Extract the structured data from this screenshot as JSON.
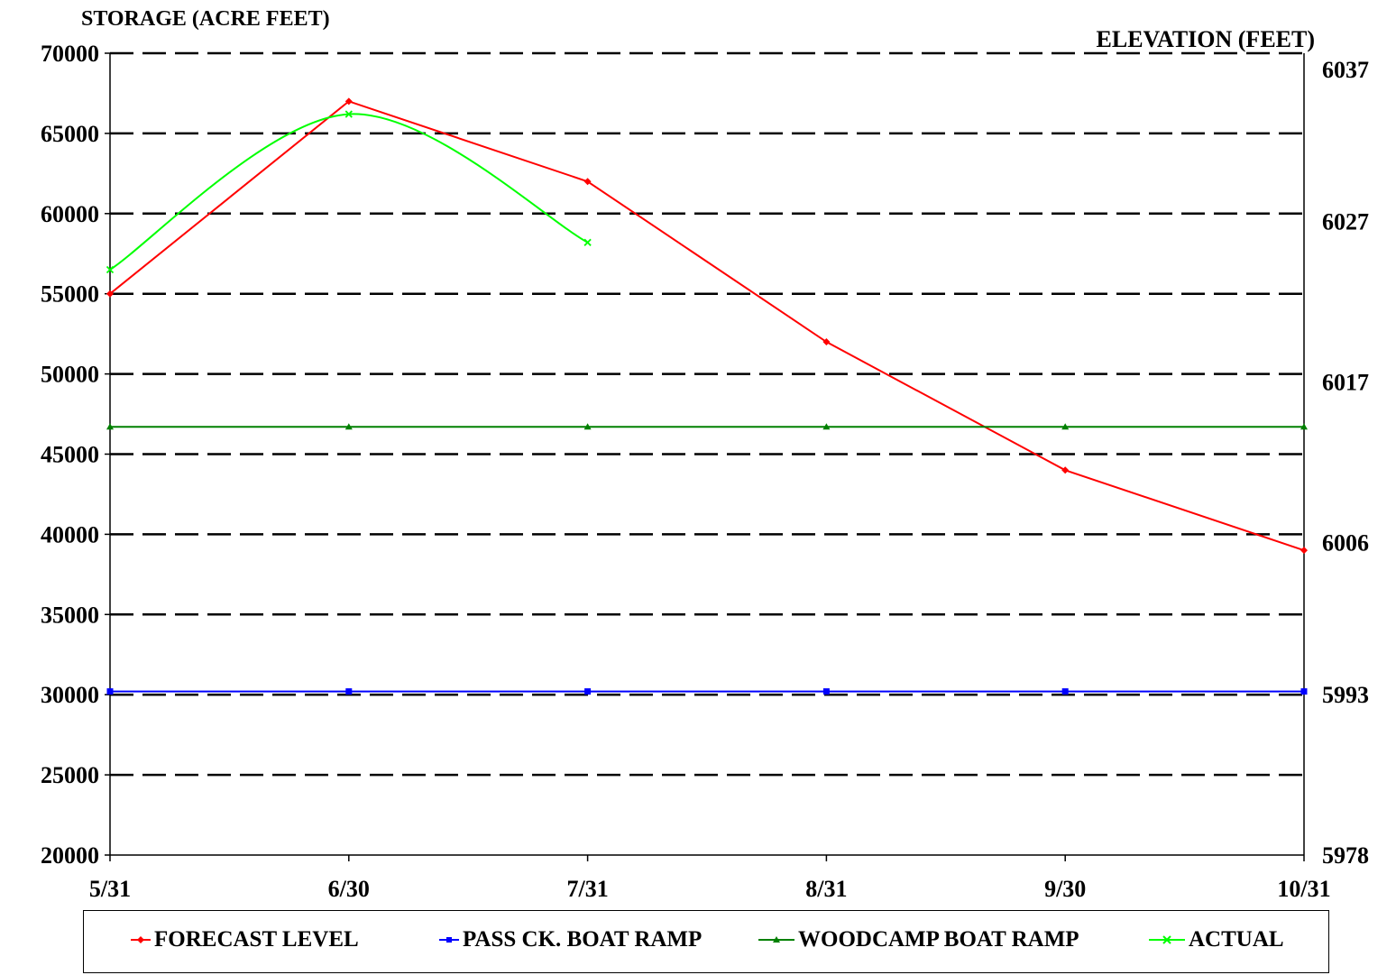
{
  "chart_data": {
    "type": "line",
    "left_axis_title": "STORAGE (ACRE FEET)",
    "right_axis_title": "ELEVATION (FEET)",
    "categories": [
      "5/31",
      "6/30",
      "7/31",
      "8/31",
      "9/30",
      "10/31"
    ],
    "ylim": [
      20000,
      70000
    ],
    "yticks": [
      "20000",
      "25000",
      "30000",
      "35000",
      "40000",
      "45000",
      "50000",
      "55000",
      "60000",
      "65000",
      "70000"
    ],
    "ytick_values": [
      20000,
      25000,
      30000,
      35000,
      40000,
      45000,
      50000,
      55000,
      60000,
      65000,
      70000
    ],
    "right_ticks": [
      {
        "label": "6037",
        "storage": 69000
      },
      {
        "label": "6027",
        "storage": 59500
      },
      {
        "label": "6017",
        "storage": 49500
      },
      {
        "label": "6006",
        "storage": 39500
      },
      {
        "label": "5993",
        "storage": 30000
      },
      {
        "label": "5978",
        "storage": 20000
      }
    ],
    "grid": "horizontal-dashed",
    "legend_position": "bottom",
    "series": [
      {
        "name": "FORECAST LEVEL",
        "color": "#ff0000",
        "marker": "diamond",
        "smooth": false,
        "values": [
          55000,
          67000,
          62000,
          52000,
          44000,
          39000
        ]
      },
      {
        "name": "PASS CK. BOAT RAMP",
        "color": "#0000ff",
        "marker": "square",
        "smooth": false,
        "values": [
          30200,
          30200,
          30200,
          30200,
          30200,
          30200
        ]
      },
      {
        "name": "WOODCAMP BOAT RAMP",
        "color": "#008000",
        "marker": "triangle",
        "smooth": false,
        "values": [
          46700,
          46700,
          46700,
          46700,
          46700,
          46700
        ]
      },
      {
        "name": "ACTUAL",
        "color": "#00ff00",
        "marker": "x",
        "smooth": true,
        "values": [
          56500,
          66200,
          58200,
          null,
          null,
          null
        ]
      }
    ]
  }
}
